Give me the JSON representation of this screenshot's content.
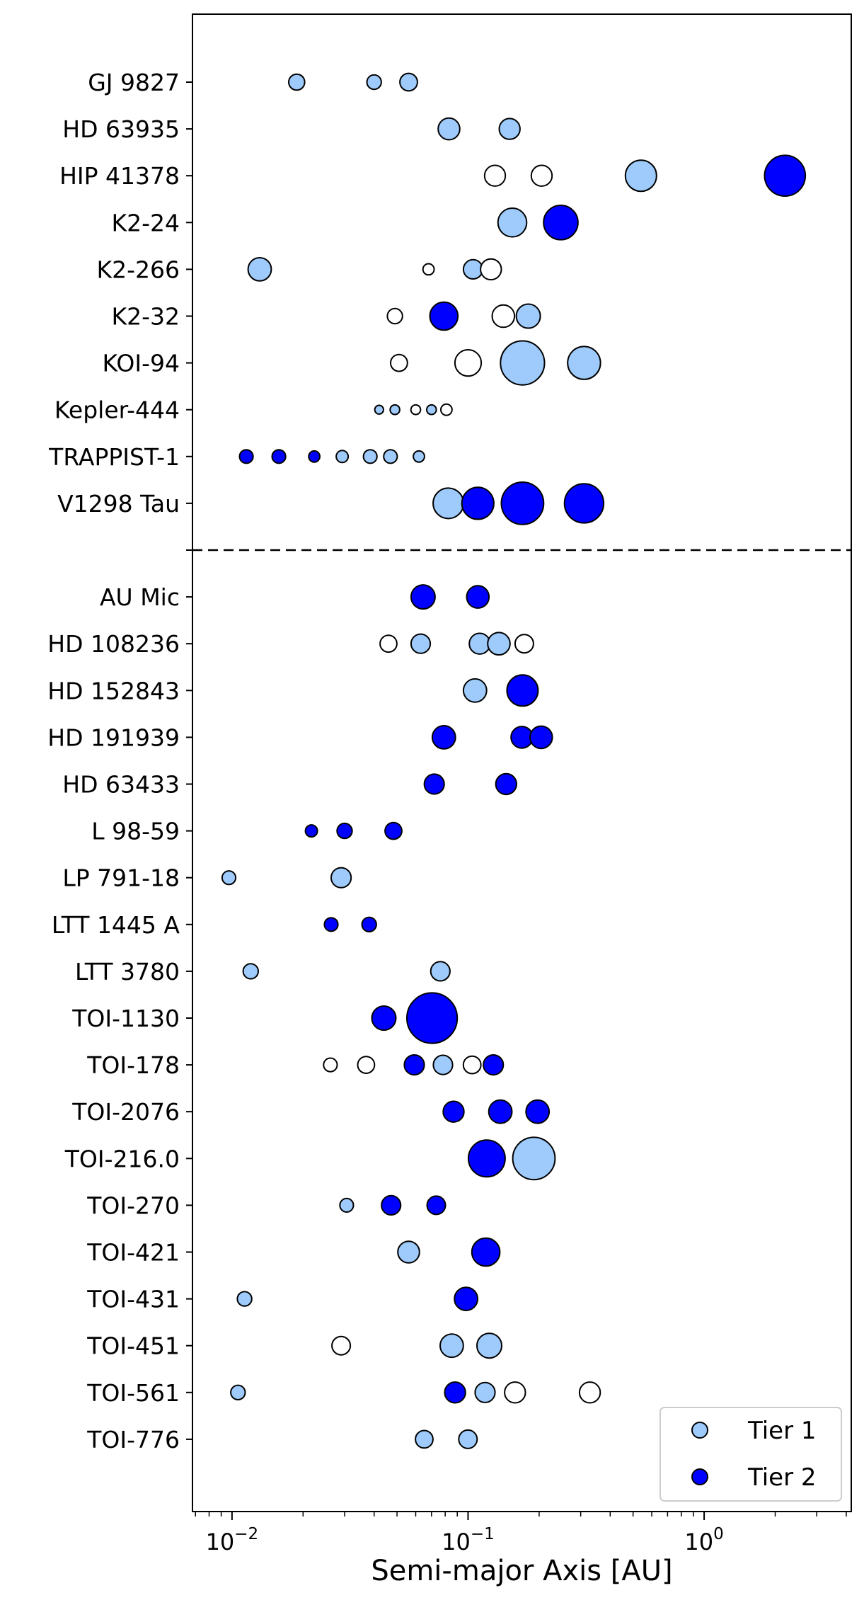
{
  "chart_data": {
    "type": "scatter",
    "xlabel": "Semi-major Axis [AU]",
    "ylabel": "",
    "x_scale": "log",
    "xlim": [
      0.0068,
      4.2
    ],
    "x_ticks": [
      {
        "value": 0.01,
        "base": "10",
        "exp": "−2"
      },
      {
        "value": 0.1,
        "base": "10",
        "exp": "−1"
      },
      {
        "value": 1,
        "base": "10",
        "exp": "0"
      }
    ],
    "grid": false,
    "legend_position": "bottom-right",
    "colors": {
      "tier_1": "#9ecbfb",
      "tier_2": "#0000ff",
      "unclassified": "#ffffff",
      "edge": "#000000"
    },
    "legend": [
      {
        "label": "Tier 1",
        "tier": 1
      },
      {
        "label": "Tier 2",
        "tier": 2
      }
    ],
    "groups": [
      {
        "systems": [
          {
            "name": "GJ 9827",
            "planets": [
              {
                "a": 0.0188,
                "tier": 1,
                "size": 1.0
              },
              {
                "a": 0.04,
                "tier": 1,
                "size": 0.9
              },
              {
                "a": 0.056,
                "tier": 1,
                "size": 1.1
              }
            ]
          },
          {
            "name": "HD 63935",
            "planets": [
              {
                "a": 0.083,
                "tier": 1,
                "size": 1.35
              },
              {
                "a": 0.15,
                "tier": 1,
                "size": 1.3
              }
            ]
          },
          {
            "name": "HIP 41378",
            "planets": [
              {
                "a": 0.13,
                "tier": 0,
                "size": 1.3
              },
              {
                "a": 0.205,
                "tier": 0,
                "size": 1.3
              },
              {
                "a": 0.54,
                "tier": 1,
                "size": 1.95
              },
              {
                "a": 2.2,
                "tier": 2,
                "size": 2.55
              }
            ]
          },
          {
            "name": "K2-24",
            "planets": [
              {
                "a": 0.154,
                "tier": 1,
                "size": 1.8
              },
              {
                "a": 0.247,
                "tier": 2,
                "size": 2.15
              }
            ]
          },
          {
            "name": "K2-266",
            "planets": [
              {
                "a": 0.0131,
                "tier": 1,
                "size": 1.45
              },
              {
                "a": 0.068,
                "tier": 0,
                "size": 0.7
              },
              {
                "a": 0.105,
                "tier": 1,
                "size": 1.2
              },
              {
                "a": 0.125,
                "tier": 0,
                "size": 1.3
              }
            ]
          },
          {
            "name": "K2-32",
            "planets": [
              {
                "a": 0.049,
                "tier": 0,
                "size": 0.95
              },
              {
                "a": 0.079,
                "tier": 2,
                "size": 1.75
              },
              {
                "a": 0.141,
                "tier": 0,
                "size": 1.4
              },
              {
                "a": 0.18,
                "tier": 1,
                "size": 1.5
              }
            ]
          },
          {
            "name": "KOI-94",
            "planets": [
              {
                "a": 0.051,
                "tier": 0,
                "size": 1.05
              },
              {
                "a": 0.1,
                "tier": 0,
                "size": 1.65
              },
              {
                "a": 0.17,
                "tier": 1,
                "size": 2.75
              },
              {
                "a": 0.31,
                "tier": 1,
                "size": 2.05
              }
            ]
          },
          {
            "name": "Kepler-444",
            "planets": [
              {
                "a": 0.042,
                "tier": 1,
                "size": 0.55
              },
              {
                "a": 0.049,
                "tier": 1,
                "size": 0.6
              },
              {
                "a": 0.06,
                "tier": 0,
                "size": 0.6
              },
              {
                "a": 0.07,
                "tier": 1,
                "size": 0.6
              },
              {
                "a": 0.081,
                "tier": 0,
                "size": 0.7
              }
            ]
          },
          {
            "name": "TRAPPIST-1",
            "planets": [
              {
                "a": 0.0115,
                "tier": 2,
                "size": 0.85
              },
              {
                "a": 0.0158,
                "tier": 2,
                "size": 0.85
              },
              {
                "a": 0.0223,
                "tier": 2,
                "size": 0.7
              },
              {
                "a": 0.0293,
                "tier": 1,
                "size": 0.75
              },
              {
                "a": 0.0385,
                "tier": 1,
                "size": 0.85
              },
              {
                "a": 0.0469,
                "tier": 1,
                "size": 0.85
              },
              {
                "a": 0.0619,
                "tier": 1,
                "size": 0.7
              }
            ]
          },
          {
            "name": "V1298 Tau",
            "planets": [
              {
                "a": 0.0825,
                "tier": 1,
                "size": 1.9
              },
              {
                "a": 0.11,
                "tier": 2,
                "size": 2.0
              },
              {
                "a": 0.17,
                "tier": 2,
                "size": 2.65
              },
              {
                "a": 0.31,
                "tier": 2,
                "size": 2.45
              }
            ]
          }
        ]
      },
      {
        "systems": [
          {
            "name": "AU Mic",
            "planets": [
              {
                "a": 0.0645,
                "tier": 2,
                "size": 1.5
              },
              {
                "a": 0.11,
                "tier": 2,
                "size": 1.4
              }
            ]
          },
          {
            "name": "HD 108236",
            "planets": [
              {
                "a": 0.046,
                "tier": 0,
                "size": 1.05
              },
              {
                "a": 0.063,
                "tier": 1,
                "size": 1.2
              },
              {
                "a": 0.112,
                "tier": 1,
                "size": 1.3
              },
              {
                "a": 0.135,
                "tier": 1,
                "size": 1.4
              },
              {
                "a": 0.173,
                "tier": 0,
                "size": 1.15
              }
            ]
          },
          {
            "name": "HD 152843",
            "planets": [
              {
                "a": 0.107,
                "tier": 1,
                "size": 1.45
              },
              {
                "a": 0.17,
                "tier": 2,
                "size": 1.95
              }
            ]
          },
          {
            "name": "HD 191939",
            "planets": [
              {
                "a": 0.079,
                "tier": 2,
                "size": 1.45
              },
              {
                "a": 0.169,
                "tier": 2,
                "size": 1.35
              },
              {
                "a": 0.204,
                "tier": 2,
                "size": 1.4
              }
            ]
          },
          {
            "name": "HD 63433",
            "planets": [
              {
                "a": 0.0719,
                "tier": 2,
                "size": 1.25
              },
              {
                "a": 0.145,
                "tier": 2,
                "size": 1.3
              }
            ]
          },
          {
            "name": "L 98-59",
            "planets": [
              {
                "a": 0.0217,
                "tier": 2,
                "size": 0.75
              },
              {
                "a": 0.03,
                "tier": 2,
                "size": 0.95
              },
              {
                "a": 0.0483,
                "tier": 2,
                "size": 1.05
              }
            ]
          },
          {
            "name": "LP 791-18",
            "planets": [
              {
                "a": 0.0097,
                "tier": 1,
                "size": 0.85
              },
              {
                "a": 0.029,
                "tier": 1,
                "size": 1.25
              }
            ]
          },
          {
            "name": "LTT 1445 A",
            "planets": [
              {
                "a": 0.0263,
                "tier": 2,
                "size": 0.85
              },
              {
                "a": 0.0381,
                "tier": 2,
                "size": 0.9
              }
            ]
          },
          {
            "name": "LTT 3780",
            "planets": [
              {
                "a": 0.012,
                "tier": 1,
                "size": 0.95
              },
              {
                "a": 0.0763,
                "tier": 1,
                "size": 1.2
              }
            ]
          },
          {
            "name": "TOI-1130",
            "planets": [
              {
                "a": 0.044,
                "tier": 2,
                "size": 1.5
              },
              {
                "a": 0.0704,
                "tier": 2,
                "size": 3.15
              }
            ]
          },
          {
            "name": "TOI-178",
            "planets": [
              {
                "a": 0.0261,
                "tier": 0,
                "size": 0.85
              },
              {
                "a": 0.037,
                "tier": 0,
                "size": 1.05
              },
              {
                "a": 0.0592,
                "tier": 2,
                "size": 1.25
              },
              {
                "a": 0.0783,
                "tier": 1,
                "size": 1.2
              },
              {
                "a": 0.104,
                "tier": 0,
                "size": 1.1
              },
              {
                "a": 0.128,
                "tier": 2,
                "size": 1.25
              }
            ]
          },
          {
            "name": "TOI-2076",
            "planets": [
              {
                "a": 0.0868,
                "tier": 2,
                "size": 1.3
              },
              {
                "a": 0.137,
                "tier": 2,
                "size": 1.45
              },
              {
                "a": 0.197,
                "tier": 2,
                "size": 1.45
              }
            ]
          },
          {
            "name": "TOI-216.0",
            "planets": [
              {
                "a": 0.12,
                "tier": 2,
                "size": 2.3
              },
              {
                "a": 0.19,
                "tier": 1,
                "size": 2.65
              }
            ]
          },
          {
            "name": "TOI-270",
            "planets": [
              {
                "a": 0.0306,
                "tier": 1,
                "size": 0.85
              },
              {
                "a": 0.0472,
                "tier": 2,
                "size": 1.2
              },
              {
                "a": 0.0733,
                "tier": 2,
                "size": 1.15
              }
            ]
          },
          {
            "name": "TOI-421",
            "planets": [
              {
                "a": 0.056,
                "tier": 1,
                "size": 1.35
              },
              {
                "a": 0.1189,
                "tier": 2,
                "size": 1.75
              }
            ]
          },
          {
            "name": "TOI-431",
            "planets": [
              {
                "a": 0.0113,
                "tier": 1,
                "size": 0.9
              },
              {
                "a": 0.098,
                "tier": 2,
                "size": 1.45
              }
            ]
          },
          {
            "name": "TOI-451",
            "planets": [
              {
                "a": 0.029,
                "tier": 0,
                "size": 1.15
              },
              {
                "a": 0.0853,
                "tier": 1,
                "size": 1.45
              },
              {
                "a": 0.123,
                "tier": 1,
                "size": 1.55
              }
            ]
          },
          {
            "name": "TOI-561",
            "planets": [
              {
                "a": 0.0106,
                "tier": 1,
                "size": 0.9
              },
              {
                "a": 0.0881,
                "tier": 2,
                "size": 1.3
              },
              {
                "a": 0.118,
                "tier": 1,
                "size": 1.25
              },
              {
                "a": 0.158,
                "tier": 0,
                "size": 1.3
              },
              {
                "a": 0.328,
                "tier": 0,
                "size": 1.3
              }
            ]
          },
          {
            "name": "TOI-776",
            "planets": [
              {
                "a": 0.0652,
                "tier": 1,
                "size": 1.1
              },
              {
                "a": 0.0999,
                "tier": 1,
                "size": 1.15
              }
            ]
          }
        ]
      }
    ]
  }
}
